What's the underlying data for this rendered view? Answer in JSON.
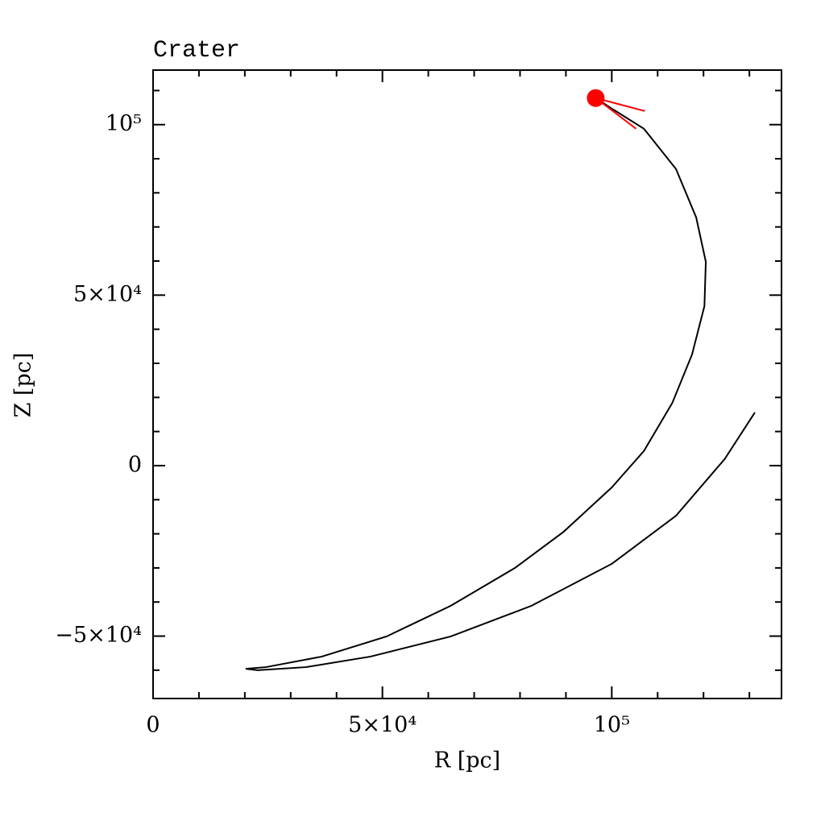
{
  "chart_data": {
    "type": "line",
    "title": "Crater",
    "xlabel": "R [pc]",
    "ylabel": "Z [pc]",
    "xlim": [
      0,
      137000
    ],
    "ylim": [
      -68300,
      116000
    ],
    "xticks": [
      {
        "value": 0,
        "label": "0"
      },
      {
        "value": 50000,
        "label": "5×10⁴"
      },
      {
        "value": 100000,
        "label": "10⁵"
      }
    ],
    "yticks": [
      {
        "value": -50000,
        "label": "−5×10⁴"
      },
      {
        "value": 0,
        "label": "0"
      },
      {
        "value": 50000,
        "label": "5×10⁴"
      },
      {
        "value": 100000,
        "label": "10⁵"
      }
    ],
    "xminorticks": [
      10000,
      20000,
      30000,
      40000,
      60000,
      70000,
      80000,
      90000,
      110000,
      120000,
      130000
    ],
    "yminorticks": [
      -60000,
      -40000,
      -30000,
      -20000,
      -10000,
      10000,
      20000,
      30000,
      40000,
      60000,
      70000,
      80000,
      90000,
      110000
    ],
    "series": [
      {
        "color": "#000000",
        "x": [
          96500,
          100000,
          107000,
          114000,
          118400,
          120500,
          120200,
          117500,
          113200,
          107000,
          100000,
          89500,
          78900,
          64900,
          50900,
          36800,
          24600,
          20200,
          22800,
          33300,
          47400,
          64900,
          82500,
          100000,
          114000,
          124600,
          131200
        ],
        "values": [
          107800,
          104700,
          98800,
          87000,
          72800,
          59800,
          46800,
          32600,
          18400,
          4300,
          -6400,
          -19400,
          -30000,
          -41100,
          -50100,
          -56000,
          -59100,
          -59600,
          -60000,
          -59100,
          -56000,
          -50100,
          -41100,
          -28800,
          -14700,
          1900,
          15600
        ]
      },
      {
        "type": "scatter",
        "color": "#ff0000",
        "x": [
          96500
        ],
        "values": [
          107800
        ]
      }
    ],
    "velocity_lines": [
      {
        "color": "#ff0000",
        "x": [
          96500,
          107200
        ],
        "values": [
          107800,
          104000
        ]
      },
      {
        "color": "#ff0000",
        "x": [
          96500,
          105300
        ],
        "values": [
          107800,
          98800
        ]
      }
    ]
  }
}
